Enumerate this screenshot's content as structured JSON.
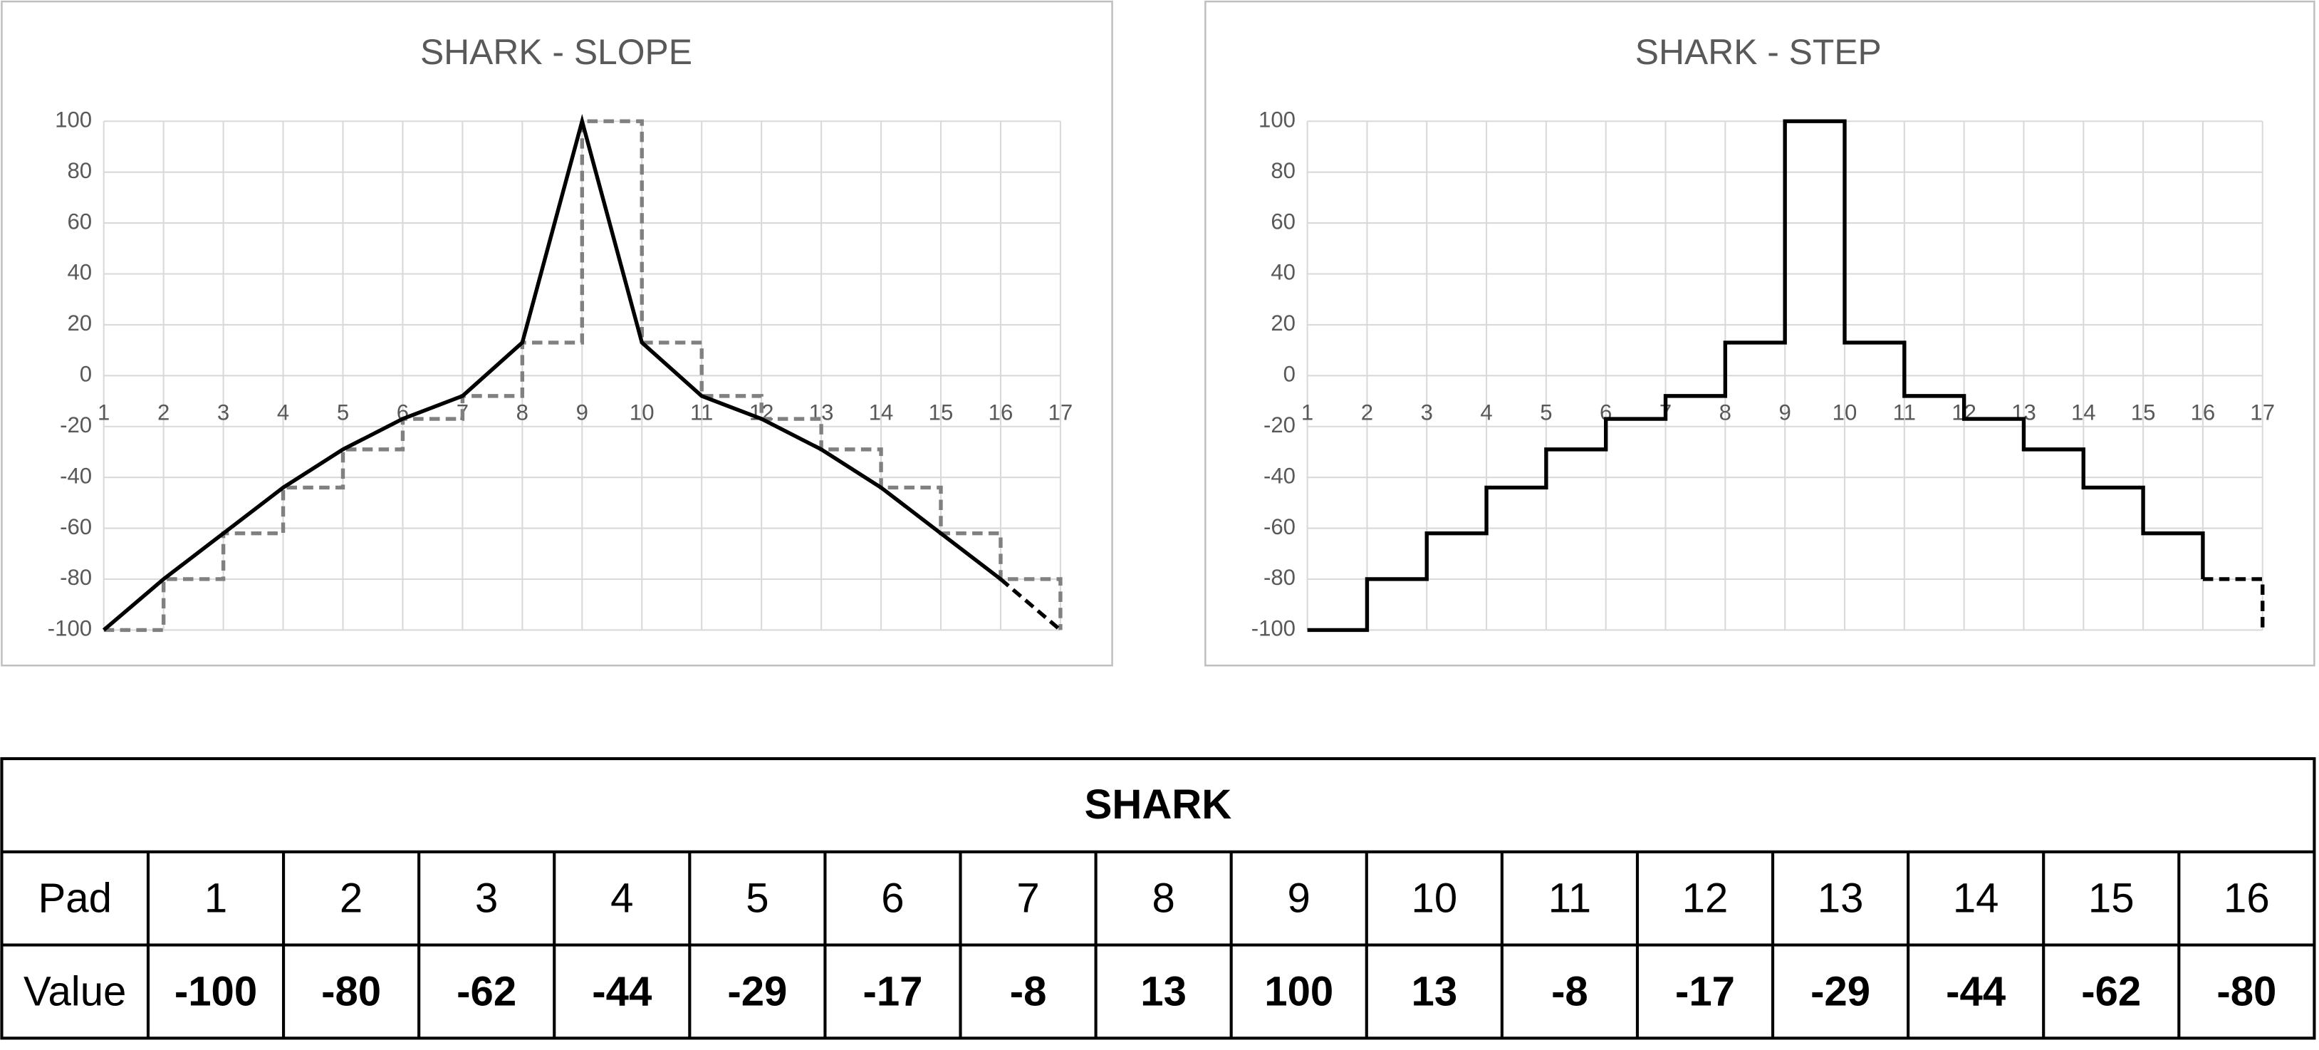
{
  "charts": [
    {
      "type": "line",
      "title": "SHARK - SLOPE",
      "x": [
        1,
        2,
        3,
        4,
        5,
        6,
        7,
        8,
        9,
        10,
        11,
        12,
        13,
        14,
        15,
        16,
        17
      ],
      "xlim": [
        1,
        17
      ],
      "xticks": [
        1,
        2,
        3,
        4,
        5,
        6,
        7,
        8,
        9,
        10,
        11,
        12,
        13,
        14,
        15,
        16,
        17
      ],
      "ylim": [
        -100,
        100
      ],
      "yticks": [
        -100,
        -80,
        -60,
        -40,
        -20,
        0,
        20,
        40,
        60,
        80,
        100
      ],
      "grid": true,
      "series": [
        {
          "color": "#808080",
          "step": true,
          "dash": true,
          "values": [
            -100,
            -80,
            -62,
            -44,
            -29,
            -17,
            -8,
            13,
            100,
            13,
            -8,
            -17,
            -29,
            -44,
            -62,
            -80,
            -100
          ]
        },
        {
          "color": "#000000",
          "step": false,
          "dashed_from": 16,
          "values": [
            -100,
            -80,
            -62,
            -44,
            -29,
            -17,
            -8,
            13,
            100,
            13,
            -8,
            -17,
            -29,
            -44,
            -62,
            -80,
            -100
          ]
        }
      ]
    },
    {
      "type": "line",
      "title": "SHARK - STEP",
      "x": [
        1,
        2,
        3,
        4,
        5,
        6,
        7,
        8,
        9,
        10,
        11,
        12,
        13,
        14,
        15,
        16,
        17
      ],
      "xlim": [
        1,
        17
      ],
      "xticks": [
        1,
        2,
        3,
        4,
        5,
        6,
        7,
        8,
        9,
        10,
        11,
        12,
        13,
        14,
        15,
        16,
        17
      ],
      "ylim": [
        -100,
        100
      ],
      "yticks": [
        -100,
        -80,
        -60,
        -40,
        -20,
        0,
        20,
        40,
        60,
        80,
        100
      ],
      "grid": true,
      "series": [
        {
          "color": "#000000",
          "step": true,
          "dashed_from": 16,
          "values": [
            -100,
            -80,
            -62,
            -44,
            -29,
            -17,
            -8,
            13,
            100,
            13,
            -8,
            -17,
            -29,
            -44,
            -62,
            -80,
            -100
          ]
        }
      ]
    }
  ],
  "table": {
    "title": "SHARK",
    "rows": [
      [
        "Pad",
        "1",
        "2",
        "3",
        "4",
        "5",
        "6",
        "7",
        "8",
        "9",
        "10",
        "11",
        "12",
        "13",
        "14",
        "15",
        "16"
      ],
      [
        "Value",
        "-100",
        "-80",
        "-62",
        "-44",
        "-29",
        "-17",
        "-8",
        "13",
        "100",
        "13",
        "-8",
        "-17",
        "-29",
        "-44",
        "-62",
        "-80"
      ]
    ]
  }
}
